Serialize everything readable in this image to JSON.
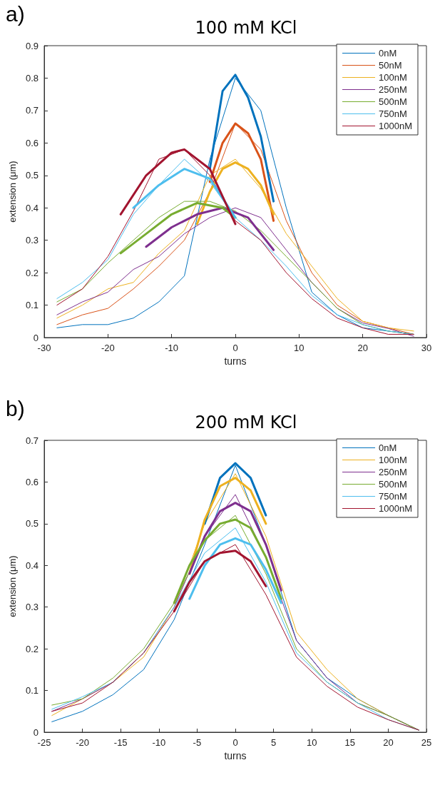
{
  "chart_data": [
    {
      "type": "line",
      "title": "100 mM KCl",
      "xlabel": "turns",
      "ylabel": "extension (μm)",
      "annotations": [
        "a)"
      ],
      "xlim": [
        -30,
        30
      ],
      "xticks": [
        -30,
        -20,
        -10,
        0,
        10,
        20,
        30
      ],
      "ylim": [
        0,
        0.9
      ],
      "yticks": [
        0,
        0.1,
        0.2,
        0.3,
        0.4,
        0.5,
        0.6,
        0.7,
        0.8,
        0.9
      ],
      "grid": false,
      "legend": "top right",
      "marker": "none",
      "line_style": "solid",
      "x": [
        -28,
        -24,
        -20,
        -16,
        -12,
        -8,
        -4,
        0,
        4,
        8,
        12,
        16,
        20,
        24,
        28
      ],
      "series": [
        {
          "name": "0nM",
          "color": "#0072bd",
          "values": [
            0.03,
            0.04,
            0.04,
            0.06,
            0.11,
            0.19,
            0.55,
            0.8,
            0.7,
            0.4,
            0.14,
            0.07,
            0.03,
            0.02,
            0.01
          ]
        },
        {
          "name": "50nM",
          "color": "#d95319",
          "values": [
            0.04,
            0.07,
            0.09,
            0.15,
            0.22,
            0.3,
            0.45,
            0.66,
            0.58,
            0.36,
            0.2,
            0.1,
            0.05,
            0.03,
            0.01
          ]
        },
        {
          "name": "100nM",
          "color": "#edb120",
          "values": [
            0.06,
            0.1,
            0.15,
            0.17,
            0.26,
            0.33,
            0.5,
            0.55,
            0.46,
            0.32,
            0.22,
            0.12,
            0.05,
            0.03,
            0.02
          ]
        },
        {
          "name": "250nM",
          "color": "#7e2f8e",
          "values": [
            0.07,
            0.11,
            0.14,
            0.21,
            0.25,
            0.32,
            0.37,
            0.4,
            0.37,
            0.27,
            0.17,
            0.09,
            0.045,
            0.028,
            0.004
          ]
        },
        {
          "name": "500nM",
          "color": "#77ac30",
          "values": [
            0.11,
            0.15,
            0.23,
            0.3,
            0.37,
            0.42,
            0.42,
            0.39,
            0.33,
            0.25,
            0.17,
            0.09,
            0.04,
            0.02,
            0.01
          ]
        },
        {
          "name": "750nM",
          "color": "#4dbeee",
          "values": [
            0.12,
            0.17,
            0.24,
            0.38,
            0.47,
            0.55,
            0.48,
            0.37,
            0.3,
            0.22,
            0.13,
            0.07,
            0.04,
            0.02,
            0.01
          ]
        },
        {
          "name": "1000nM",
          "color": "#a2142f",
          "values": [
            0.1,
            0.15,
            0.25,
            0.39,
            0.55,
            0.58,
            0.5,
            0.36,
            0.3,
            0.2,
            0.12,
            0.06,
            0.03,
            0.01,
            0.01
          ]
        },
        {
          "color": "#0072bd",
          "x": [
            -4,
            -2,
            0,
            2,
            4,
            6
          ],
          "values": [
            0.52,
            0.76,
            0.81,
            0.74,
            0.62,
            0.42
          ]
        },
        {
          "color": "#d95319",
          "x": [
            -4,
            -2,
            0,
            2,
            4,
            6
          ],
          "values": [
            0.48,
            0.6,
            0.66,
            0.63,
            0.55,
            0.36
          ]
        },
        {
          "color": "#edb120",
          "x": [
            -6,
            -4,
            -2,
            0,
            2,
            4,
            6
          ],
          "values": [
            0.35,
            0.45,
            0.52,
            0.54,
            0.52,
            0.47,
            0.38
          ]
        },
        {
          "color": "#7e2f8e",
          "x": [
            -14,
            -10,
            -6,
            -2,
            2,
            6
          ],
          "values": [
            0.28,
            0.34,
            0.38,
            0.4,
            0.37,
            0.27
          ]
        },
        {
          "color": "#77ac30",
          "x": [
            -18,
            -14,
            -10,
            -6,
            -2,
            0
          ],
          "values": [
            0.26,
            0.32,
            0.38,
            0.415,
            0.4,
            0.37
          ]
        },
        {
          "color": "#4dbeee",
          "x": [
            -16,
            -12,
            -8,
            -4,
            0
          ],
          "values": [
            0.4,
            0.47,
            0.52,
            0.49,
            0.37
          ]
        },
        {
          "color": "#a2142f",
          "x": [
            -18,
            -14,
            -10,
            -8,
            -4,
            0
          ],
          "values": [
            0.38,
            0.5,
            0.57,
            0.58,
            0.52,
            0.35
          ]
        }
      ]
    },
    {
      "type": "line",
      "title": "200 mM KCl",
      "xlabel": "turns",
      "ylabel": "extension (μm)",
      "annotations": [
        "b)"
      ],
      "xlim": [
        -25,
        25
      ],
      "xticks": [
        -25,
        -20,
        -15,
        -10,
        -5,
        0,
        5,
        10,
        15,
        20,
        25
      ],
      "ylim": [
        0,
        0.7
      ],
      "yticks": [
        0,
        0.1,
        0.2,
        0.3,
        0.4,
        0.5,
        0.6,
        0.7
      ],
      "grid": false,
      "legend": "top right",
      "marker": "none",
      "line_style": "solid",
      "x": [
        -24,
        -20,
        -16,
        -12,
        -8,
        -4,
        0,
        4,
        8,
        12,
        16,
        20,
        24
      ],
      "series": [
        {
          "name": "0nM",
          "color": "#0072bd",
          "values": [
            0.025,
            0.05,
            0.09,
            0.15,
            0.27,
            0.45,
            0.64,
            0.45,
            0.22,
            0.13,
            0.08,
            0.04,
            0.005
          ]
        },
        {
          "name": "100nM",
          "color": "#edb120",
          "values": [
            0.04,
            0.08,
            0.12,
            0.18,
            0.3,
            0.5,
            0.62,
            0.47,
            0.24,
            0.15,
            0.08,
            0.04,
            0.005
          ]
        },
        {
          "name": "250nM",
          "color": "#7e2f8e",
          "values": [
            0.05,
            0.08,
            0.12,
            0.19,
            0.3,
            0.47,
            0.57,
            0.42,
            0.22,
            0.13,
            0.07,
            0.04,
            0.005
          ]
        },
        {
          "name": "500nM",
          "color": "#77ac30",
          "values": [
            0.065,
            0.08,
            0.13,
            0.2,
            0.31,
            0.46,
            0.52,
            0.38,
            0.2,
            0.12,
            0.07,
            0.04,
            0.005
          ]
        },
        {
          "name": "750nM",
          "color": "#4dbeee",
          "values": [
            0.055,
            0.085,
            0.12,
            0.19,
            0.3,
            0.43,
            0.49,
            0.36,
            0.19,
            0.12,
            0.07,
            0.03,
            0.005
          ]
        },
        {
          "name": "1000nM",
          "color": "#a2142f",
          "values": [
            0.05,
            0.07,
            0.12,
            0.19,
            0.29,
            0.41,
            0.45,
            0.33,
            0.18,
            0.11,
            0.06,
            0.03,
            0.005
          ]
        },
        {
          "color": "#0072bd",
          "x": [
            -4,
            -2,
            0,
            2,
            4
          ],
          "values": [
            0.5,
            0.61,
            0.645,
            0.61,
            0.52
          ]
        },
        {
          "color": "#edb120",
          "x": [
            -6,
            -4,
            -2,
            0,
            2,
            4
          ],
          "values": [
            0.38,
            0.51,
            0.59,
            0.61,
            0.58,
            0.5
          ]
        },
        {
          "color": "#7e2f8e",
          "x": [
            -6,
            -4,
            -2,
            0,
            2,
            4,
            6
          ],
          "values": [
            0.38,
            0.47,
            0.53,
            0.55,
            0.53,
            0.45,
            0.34
          ]
        },
        {
          "color": "#77ac30",
          "x": [
            -8,
            -6,
            -4,
            -2,
            0,
            2,
            4,
            6
          ],
          "values": [
            0.31,
            0.4,
            0.46,
            0.5,
            0.51,
            0.49,
            0.42,
            0.32
          ]
        },
        {
          "color": "#4dbeee",
          "x": [
            -6,
            -4,
            -2,
            0,
            2,
            4,
            6
          ],
          "values": [
            0.32,
            0.4,
            0.45,
            0.465,
            0.45,
            0.39,
            0.31
          ]
        },
        {
          "color": "#a2142f",
          "x": [
            -8,
            -6,
            -4,
            -2,
            0,
            2,
            4
          ],
          "values": [
            0.29,
            0.36,
            0.41,
            0.43,
            0.435,
            0.41,
            0.35
          ]
        }
      ]
    }
  ]
}
